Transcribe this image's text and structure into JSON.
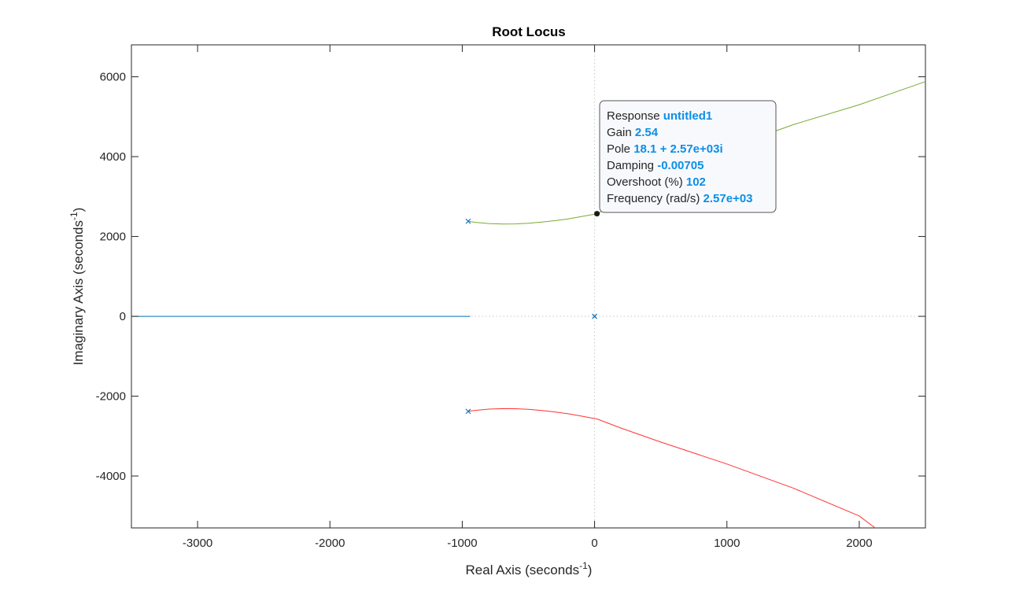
{
  "chart_data": {
    "type": "line",
    "title": "Root Locus",
    "xlabel": "Real Axis (seconds",
    "ylabel": "Imaginary Axis (seconds",
    "axis_unit_exponent": "-1",
    "xlim": [
      -3500,
      2500
    ],
    "ylim": [
      -5300,
      6800
    ],
    "xticks": [
      -3000,
      -2000,
      -1000,
      0,
      1000,
      2000
    ],
    "yticks": [
      -4000,
      -2000,
      0,
      2000,
      4000,
      6000
    ],
    "grid": false,
    "colors": {
      "branch_real": "#0072bd",
      "branch_upper": "#77ac30",
      "branch_lower": "#ff3333",
      "axes": "#262626",
      "reference_lines": "#c8c8c8"
    },
    "series": [
      {
        "x": [
          -940,
          -3500
        ],
        "y": [
          0,
          0
        ]
      },
      {
        "x": [
          -955,
          -900,
          -800,
          -700,
          -600,
          -500,
          -400,
          -300,
          -200,
          -100,
          0,
          18.1,
          200,
          500,
          1000,
          1500,
          2000,
          2500
        ],
        "y": [
          2380,
          2355,
          2325,
          2312,
          2315,
          2330,
          2360,
          2395,
          2440,
          2500,
          2560,
          2570,
          2890,
          3400,
          4200,
          4800,
          5300,
          5880
        ]
      },
      {
        "x": [
          -955,
          -900,
          -800,
          -700,
          -600,
          -500,
          -400,
          -300,
          -200,
          -100,
          0,
          18.1,
          200,
          500,
          1000,
          1500,
          2000,
          2120
        ],
        "y": [
          -2380,
          -2355,
          -2325,
          -2312,
          -2315,
          -2330,
          -2360,
          -2395,
          -2440,
          -2500,
          -2560,
          -2570,
          -2800,
          -3150,
          -3700,
          -4300,
          -5000,
          -5300
        ]
      }
    ],
    "open_loop_poles": [
      {
        "x": -955,
        "y": 2380
      },
      {
        "x": -955,
        "y": -2380
      },
      {
        "x": 0,
        "y": 0
      }
    ],
    "datatip": {
      "point": {
        "x": 18.1,
        "y": 2570
      },
      "rows": [
        {
          "label": "Response ",
          "value": "untitled1"
        },
        {
          "label": "Gain ",
          "value": "2.54"
        },
        {
          "label": "Pole ",
          "value": "18.1 + 2.57e+03i"
        },
        {
          "label": "Damping ",
          "value": "-0.00705"
        },
        {
          "label": "Overshoot (%) ",
          "value": "102"
        },
        {
          "label": "Frequency (rad/s) ",
          "value": "2.57e+03"
        }
      ]
    }
  }
}
